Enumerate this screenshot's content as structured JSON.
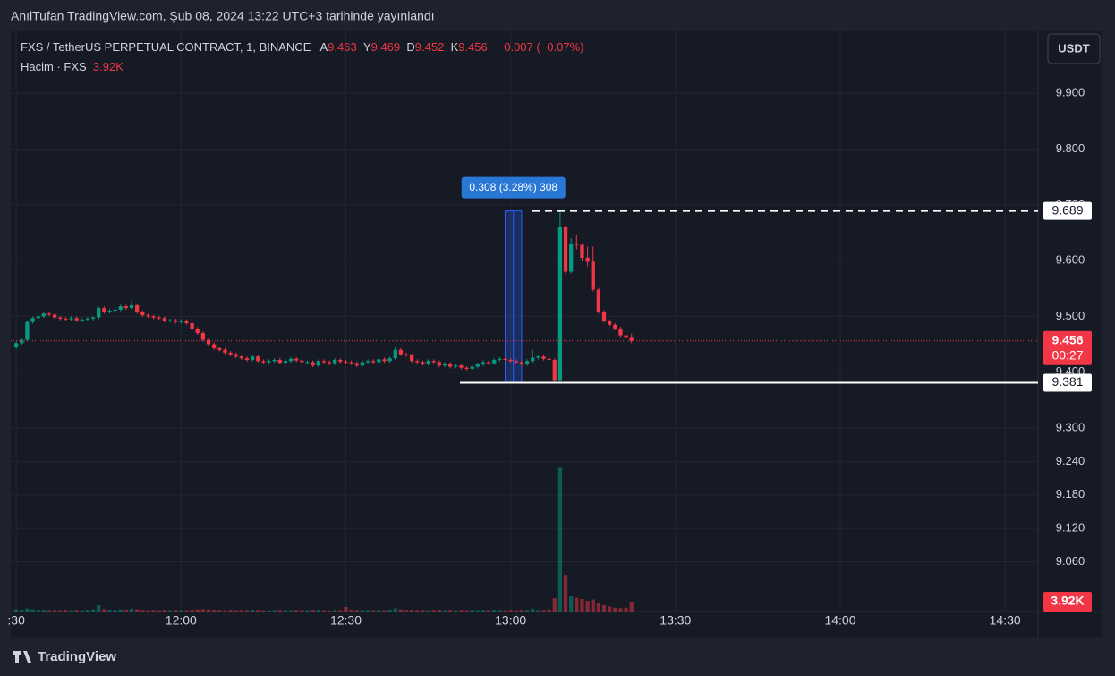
{
  "header": "AnılTufan TradingView.com, Şub 08, 2024 13:22 UTC+3 tarihinde yayınlandı",
  "footer": "TradingView",
  "chart_data": {
    "type": "candlestick",
    "symbol": "FXS / TetherUS PERPETUAL CONTRACT, 1, BINANCE",
    "ohlc_legend": [
      {
        "label": "A",
        "value": 9.463
      },
      {
        "label": "Y",
        "value": 9.469
      },
      {
        "label": "D",
        "value": 9.452
      },
      {
        "label": "K",
        "value": 9.456
      }
    ],
    "change": "−0.007 (−0.07%)",
    "volume_legend": "Hacim · FXS",
    "volume_legend_value": "3.92K",
    "currency": "USDT",
    "x": [
      "11:30",
      "11:31",
      "11:32",
      "11:33",
      "11:34",
      "11:35",
      "11:36",
      "11:37",
      "11:38",
      "11:39",
      "11:40",
      "11:41",
      "11:42",
      "11:43",
      "11:44",
      "11:45",
      "11:46",
      "11:47",
      "11:48",
      "11:49",
      "11:50",
      "11:51",
      "11:52",
      "11:53",
      "11:54",
      "11:55",
      "11:56",
      "11:57",
      "11:58",
      "11:59",
      "12:00",
      "12:01",
      "12:02",
      "12:03",
      "12:04",
      "12:05",
      "12:06",
      "12:07",
      "12:08",
      "12:09",
      "12:10",
      "12:11",
      "12:12",
      "12:13",
      "12:14",
      "12:15",
      "12:16",
      "12:17",
      "12:18",
      "12:19",
      "12:20",
      "12:21",
      "12:22",
      "12:23",
      "12:24",
      "12:25",
      "12:26",
      "12:27",
      "12:28",
      "12:29",
      "12:30",
      "12:31",
      "12:32",
      "12:33",
      "12:34",
      "12:35",
      "12:36",
      "12:37",
      "12:38",
      "12:39",
      "12:40",
      "12:41",
      "12:42",
      "12:43",
      "12:44",
      "12:45",
      "12:46",
      "12:47",
      "12:48",
      "12:49",
      "12:50",
      "12:51",
      "12:52",
      "12:53",
      "12:54",
      "12:55",
      "12:56",
      "12:57",
      "12:58",
      "12:59",
      "13:00",
      "13:01",
      "13:02",
      "13:03",
      "13:04",
      "13:05",
      "13:06",
      "13:07",
      "13:08",
      "13:09",
      "13:10",
      "13:11",
      "13:12",
      "13:13",
      "13:14",
      "13:15",
      "13:16",
      "13:17",
      "13:18",
      "13:19",
      "13:20",
      "13:21",
      "13:22"
    ],
    "open": [
      9.445,
      9.452,
      9.458,
      9.49,
      9.497,
      9.5,
      9.505,
      9.503,
      9.498,
      9.496,
      9.495,
      9.497,
      9.493,
      9.494,
      9.496,
      9.498,
      9.515,
      9.508,
      9.51,
      9.512,
      9.518,
      9.515,
      9.52,
      9.508,
      9.502,
      9.5,
      9.498,
      9.497,
      9.492,
      9.493,
      9.49,
      9.492,
      9.488,
      9.478,
      9.47,
      9.458,
      9.45,
      9.443,
      9.44,
      9.435,
      9.432,
      9.428,
      9.425,
      9.422,
      9.428,
      9.42,
      9.418,
      9.42,
      9.422,
      9.417,
      9.42,
      9.424,
      9.421,
      9.418,
      9.418,
      9.412,
      9.42,
      9.418,
      9.416,
      9.422,
      9.419,
      9.418,
      9.416,
      9.412,
      9.418,
      9.42,
      9.418,
      9.423,
      9.42,
      9.425,
      9.44,
      9.432,
      9.43,
      9.42,
      9.418,
      9.415,
      9.42,
      9.418,
      9.412,
      9.415,
      9.41,
      9.412,
      9.408,
      9.406,
      9.41,
      9.414,
      9.418,
      9.416,
      9.422,
      9.424,
      9.422,
      9.42,
      9.418,
      9.414,
      9.42,
      9.426,
      9.428,
      9.424,
      9.422,
      9.386,
      9.66,
      9.58,
      9.63,
      9.628,
      9.605,
      9.598,
      9.548,
      9.508,
      9.492,
      9.485,
      9.478,
      9.466,
      9.463
    ],
    "high": [
      9.455,
      9.461,
      9.493,
      9.5,
      9.503,
      9.508,
      9.508,
      9.506,
      9.501,
      9.499,
      9.5,
      9.5,
      9.497,
      9.499,
      9.501,
      9.518,
      9.518,
      9.513,
      9.515,
      9.521,
      9.521,
      9.528,
      9.523,
      9.511,
      9.505,
      9.503,
      9.501,
      9.5,
      9.496,
      9.496,
      9.495,
      9.495,
      9.491,
      9.481,
      9.473,
      9.461,
      9.453,
      9.446,
      9.443,
      9.438,
      9.435,
      9.431,
      9.428,
      9.431,
      9.431,
      9.423,
      9.423,
      9.425,
      9.425,
      9.423,
      9.427,
      9.427,
      9.424,
      9.421,
      9.421,
      9.423,
      9.423,
      9.421,
      9.425,
      9.425,
      9.422,
      9.421,
      9.419,
      9.421,
      9.423,
      9.423,
      9.426,
      9.426,
      9.428,
      9.445,
      9.443,
      9.435,
      9.433,
      9.423,
      9.421,
      9.423,
      9.423,
      9.421,
      9.418,
      9.418,
      9.415,
      9.415,
      9.411,
      9.413,
      9.417,
      9.421,
      9.421,
      9.425,
      9.427,
      9.427,
      9.425,
      9.423,
      9.421,
      9.423,
      9.44,
      9.431,
      9.431,
      9.427,
      9.425,
      9.689,
      9.663,
      9.64,
      9.645,
      9.631,
      9.625,
      9.625,
      9.551,
      9.511,
      9.495,
      9.488,
      9.481,
      9.47,
      9.469
    ],
    "low": [
      9.442,
      9.449,
      9.455,
      9.487,
      9.494,
      9.497,
      9.5,
      9.495,
      9.493,
      9.492,
      9.492,
      9.49,
      9.49,
      9.491,
      9.493,
      9.495,
      9.505,
      9.505,
      9.507,
      9.509,
      9.512,
      9.512,
      9.505,
      9.499,
      9.497,
      9.495,
      9.494,
      9.489,
      9.489,
      9.487,
      9.487,
      9.485,
      9.475,
      9.467,
      9.455,
      9.447,
      9.44,
      9.437,
      9.432,
      9.429,
      9.425,
      9.422,
      9.419,
      9.419,
      9.417,
      9.415,
      9.415,
      9.417,
      9.414,
      9.414,
      9.417,
      9.418,
      9.415,
      9.415,
      9.409,
      9.409,
      9.415,
      9.413,
      9.413,
      9.416,
      9.415,
      9.413,
      9.409,
      9.409,
      9.415,
      9.415,
      9.415,
      9.417,
      9.417,
      9.422,
      9.429,
      9.427,
      9.417,
      9.415,
      9.412,
      9.412,
      9.415,
      9.409,
      9.409,
      9.407,
      9.407,
      9.405,
      9.403,
      9.403,
      9.407,
      9.411,
      9.413,
      9.413,
      9.419,
      9.419,
      9.417,
      9.415,
      9.411,
      9.411,
      9.417,
      9.423,
      9.421,
      9.419,
      9.381,
      9.383,
      9.575,
      9.577,
      9.62,
      9.6,
      9.59,
      9.545,
      9.505,
      9.489,
      9.482,
      9.475,
      9.463,
      9.46,
      9.452
    ],
    "close": [
      9.452,
      9.458,
      9.49,
      9.497,
      9.5,
      9.505,
      9.503,
      9.498,
      9.496,
      9.495,
      9.497,
      9.493,
      9.494,
      9.496,
      9.498,
      9.515,
      9.508,
      9.51,
      9.512,
      9.518,
      9.515,
      9.52,
      9.508,
      9.502,
      9.5,
      9.498,
      9.497,
      9.492,
      9.493,
      9.49,
      9.492,
      9.488,
      9.478,
      9.47,
      9.458,
      9.45,
      9.443,
      9.44,
      9.435,
      9.432,
      9.428,
      9.425,
      9.422,
      9.428,
      9.42,
      9.418,
      9.42,
      9.422,
      9.417,
      9.42,
      9.424,
      9.421,
      9.418,
      9.418,
      9.412,
      9.42,
      9.418,
      9.416,
      9.422,
      9.419,
      9.418,
      9.416,
      9.412,
      9.418,
      9.42,
      9.418,
      9.423,
      9.42,
      9.425,
      9.44,
      9.432,
      9.43,
      9.42,
      9.418,
      9.415,
      9.42,
      9.418,
      9.412,
      9.415,
      9.41,
      9.412,
      9.408,
      9.406,
      9.41,
      9.414,
      9.418,
      9.416,
      9.422,
      9.424,
      9.422,
      9.42,
      9.418,
      9.414,
      9.42,
      9.426,
      9.428,
      9.424,
      9.422,
      9.386,
      9.66,
      9.58,
      9.63,
      9.628,
      9.605,
      9.598,
      9.548,
      9.508,
      9.492,
      9.485,
      9.478,
      9.466,
      9.463,
      9.456
    ],
    "volume": [
      900,
      700,
      1200,
      800,
      600,
      700,
      500,
      600,
      500,
      600,
      500,
      600,
      500,
      700,
      800,
      2500,
      900,
      700,
      600,
      800,
      700,
      1100,
      900,
      600,
      500,
      600,
      500,
      700,
      500,
      600,
      600,
      500,
      700,
      800,
      900,
      800,
      700,
      600,
      500,
      600,
      500,
      600,
      500,
      700,
      600,
      500,
      400,
      500,
      600,
      500,
      500,
      600,
      500,
      500,
      700,
      600,
      500,
      400,
      600,
      500,
      1800,
      700,
      600,
      500,
      600,
      500,
      600,
      500,
      700,
      1200,
      800,
      600,
      700,
      500,
      600,
      500,
      600,
      700,
      500,
      600,
      500,
      600,
      500,
      600,
      500,
      600,
      500,
      700,
      600,
      500,
      600,
      500,
      700,
      600,
      1100,
      500,
      600,
      800,
      5300,
      57000,
      14500,
      6000,
      5500,
      5000,
      4200,
      4800,
      3200,
      2500,
      2000,
      1500,
      1300,
      1500,
      3920
    ],
    "up_color": "#089981",
    "down_color": "#f23645",
    "xlim": [
      "11:29",
      "14:36"
    ],
    "xticks": [
      {
        "value": "11:30",
        "label": ":30"
      },
      "12:00",
      "12:30",
      "13:00",
      "13:30",
      "14:00",
      "14:30"
    ],
    "ylim": [
      8.971,
      10.011
    ],
    "yticks": [
      {
        "value": 9.9,
        "label": "9.900"
      },
      {
        "value": 9.8,
        "label": "9.800"
      },
      {
        "value": 9.7,
        "label": "9.700"
      },
      {
        "value": 9.6,
        "label": "9.600"
      },
      {
        "value": 9.5,
        "label": "9.500"
      },
      {
        "value": 9.4,
        "label": "9.400"
      },
      {
        "value": 9.3,
        "label": "9.300"
      },
      {
        "value": 9.24,
        "label": "9.240"
      },
      {
        "value": 9.18,
        "label": "9.180"
      },
      {
        "value": 9.12,
        "label": "9.120"
      },
      {
        "value": 9.06,
        "label": "9.060"
      }
    ],
    "y2lim": [
      0,
      230000
    ],
    "grid": true,
    "price_lines": [
      {
        "value": 9.689,
        "style": "dashed"
      },
      {
        "value": 9.381,
        "style": "solid"
      }
    ],
    "last_price": {
      "value": 9.456,
      "countdown": "00:27"
    },
    "last_volume_label": "3.92K",
    "measure": {
      "label": "0.308 (3.28%) 308",
      "x": [
        "12:59",
        "13:02"
      ]
    }
  }
}
